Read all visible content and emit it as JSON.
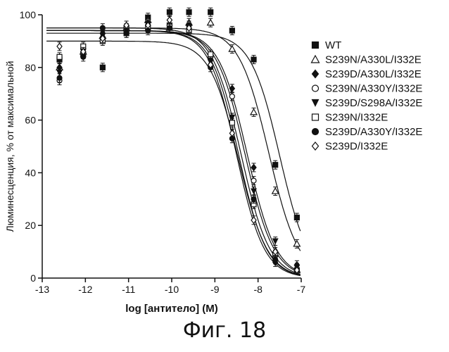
{
  "figure": {
    "caption": "Фиг. 18"
  },
  "chart_data": {
    "type": "scatter",
    "title": "",
    "xlabel": "log [антитело] (M)",
    "ylabel": "Люминесценция, % от максимальной",
    "xlim": [
      -13,
      -7
    ],
    "ylim": [
      0,
      100
    ],
    "xticks": [
      -13,
      -12,
      -11,
      -10,
      -9,
      -8,
      -7
    ],
    "xtick_labels": [
      "-13",
      "-12",
      "-11",
      "-10",
      "-9",
      "-8",
      "-7"
    ],
    "yticks": [
      0,
      20,
      40,
      60,
      80,
      100
    ],
    "ytick_labels": [
      "0",
      "20",
      "40",
      "60",
      "80",
      "100"
    ],
    "grid": false,
    "legend_position": "right",
    "series": [
      {
        "name": "WT",
        "marker": "square-filled",
        "x": [
          -12.6,
          -12.05,
          -11.6,
          -11.05,
          -10.55,
          -10.05,
          -9.6,
          -9.1,
          -8.6,
          -8.1,
          -7.6,
          -7.1
        ],
        "y": [
          83,
          85,
          80,
          95,
          99,
          101,
          101,
          101,
          94,
          83,
          43,
          23
        ],
        "curve": {
          "top": 93,
          "bottom": 0,
          "logEC50": -7.5,
          "hill": 1.3
        }
      },
      {
        "name": "S239N/A330L/I332E",
        "marker": "triangle-open",
        "x": [
          -12.6,
          -12.05,
          -11.6,
          -11.05,
          -10.55,
          -10.05,
          -9.6,
          -9.1,
          -8.6,
          -8.1,
          -7.6,
          -7.1
        ],
        "y": [
          80,
          86,
          92,
          95,
          98,
          95,
          97,
          97,
          87,
          63,
          33,
          13
        ],
        "curve": {
          "top": 95,
          "bottom": 0,
          "logEC50": -7.75,
          "hill": 1.25
        }
      },
      {
        "name": "S239D/A330L/I332E",
        "marker": "diamond-filled",
        "x": [
          -12.6,
          -12.05,
          -11.6,
          -11.05,
          -10.55,
          -10.05,
          -9.6,
          -9.1,
          -8.6,
          -8.1,
          -7.6,
          -7.1
        ],
        "y": [
          80,
          86,
          93,
          95,
          97,
          98,
          96,
          83,
          72,
          42,
          6,
          5
        ],
        "curve": {
          "top": 94,
          "bottom": 0,
          "logEC50": -8.25,
          "hill": 1.3
        }
      },
      {
        "name": "S239N/A330Y/I332E",
        "marker": "circle-open",
        "x": [
          -12.6,
          -12.05,
          -11.6,
          -11.05,
          -10.55,
          -10.05,
          -9.6,
          -9.1,
          -8.6,
          -8.1,
          -7.6,
          -7.1
        ],
        "y": [
          75,
          87,
          91,
          95,
          96,
          95,
          94,
          84,
          69,
          37,
          9,
          3
        ],
        "curve": {
          "top": 94,
          "bottom": 0,
          "logEC50": -8.3,
          "hill": 1.3
        }
      },
      {
        "name": "S239D/S298A/I332E",
        "marker": "triangle-down-filled",
        "x": [
          -12.6,
          -12.05,
          -11.6,
          -11.05,
          -10.55,
          -10.05,
          -9.6,
          -9.1,
          -8.6,
          -8.1,
          -7.6,
          -7.1
        ],
        "y": [
          78,
          86,
          92,
          94,
          95,
          95,
          95,
          82,
          61,
          33,
          14,
          4
        ],
        "curve": {
          "top": 95,
          "bottom": 0,
          "logEC50": -8.4,
          "hill": 1.3
        }
      },
      {
        "name": "S239N/I332E",
        "marker": "square-open",
        "x": [
          -12.6,
          -12.05,
          -11.6,
          -11.05,
          -10.55,
          -10.05,
          -9.6,
          -9.1,
          -8.6,
          -8.1,
          -7.6,
          -7.1
        ],
        "y": [
          84,
          88,
          90,
          93,
          95,
          96,
          94,
          85,
          59,
          28,
          9,
          3
        ],
        "curve": {
          "top": 90,
          "bottom": 0,
          "logEC50": -8.45,
          "hill": 1.3
        }
      },
      {
        "name": "S239D/A330Y/I332E",
        "marker": "circle-filled",
        "x": [
          -12.6,
          -12.05,
          -11.6,
          -11.05,
          -10.55,
          -10.05,
          -9.6,
          -9.1,
          -8.6,
          -8.1,
          -7.6,
          -7.1
        ],
        "y": [
          76,
          84,
          95,
          93,
          94,
          95,
          96,
          80,
          53,
          30,
          7,
          3
        ],
        "curve": {
          "top": 94,
          "bottom": 0,
          "logEC50": -8.5,
          "hill": 1.35
        }
      },
      {
        "name": "S239D/I332E",
        "marker": "diamond-open",
        "x": [
          -12.6,
          -12.05,
          -11.6,
          -11.05,
          -10.55,
          -10.05,
          -9.6,
          -9.1,
          -8.6,
          -8.1,
          -7.6,
          -7.1
        ],
        "y": [
          88,
          86,
          91,
          96,
          96,
          98,
          95,
          81,
          55,
          22,
          10,
          3
        ],
        "curve": {
          "top": 94,
          "bottom": 0,
          "logEC50": -8.45,
          "hill": 1.35
        }
      }
    ]
  }
}
